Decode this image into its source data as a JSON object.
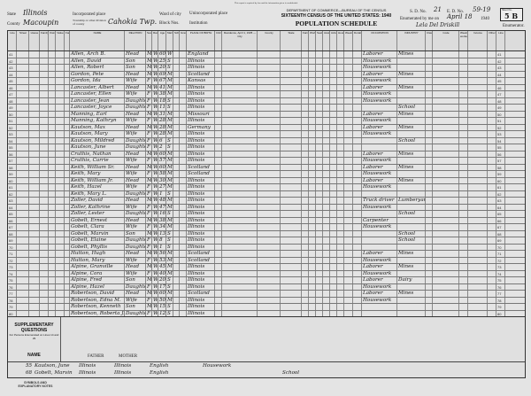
{
  "header": {
    "notice": "This report is required by law and the information given is confidential.",
    "department": "DEPARTMENT OF COMMERCE—BUREAU OF THE CENSUS",
    "census": "SIXTEENTH CENSUS OF THE UNITED STATES: 1940",
    "schedule": "POPULATION SCHEDULE",
    "state_label": "State",
    "state": "Illinois",
    "county_label": "County",
    "county": "Macoupin",
    "township_label": "Township or other division of county",
    "township": "Cahokia Twp.",
    "incorporated_label": "Incorporated place",
    "ward_label": "Ward of city",
    "block_label": "Block Nos.",
    "unincorporated_label": "Unincorporated place",
    "institution_label": "Institution",
    "sd_label": "S. D. No.",
    "sd": "21",
    "ed_label": "E. D. No.",
    "ed": "59-19",
    "sheet_label": "Sheet No.",
    "sheet": "5 B",
    "enumerated_label": "Enumerated by me on",
    "enumerated_date": "April 18",
    "year": "1940",
    "enumerator": "Lela Del Driskill",
    "enumerator_label": "Enumerator."
  },
  "columns": [
    "Line",
    "Street",
    "House",
    "Family",
    "Owned",
    "Value",
    "Farm",
    "NAME",
    "RELATION",
    "Sex",
    "Race",
    "Age",
    "Marital",
    "School",
    "Grade",
    "PLACE OF BIRTH",
    "Citizenship",
    "Residence, April 1, 1935 — City",
    "County",
    "State",
    "Farm",
    "Work",
    "Seeking",
    "Assigned",
    "Activity",
    "Hours",
    "Weeks",
    "Duration",
    "OCCUPATION",
    "INDUSTRY",
    "Class",
    "Code",
    "Weeks worked",
    "Income",
    "Other",
    "Line"
  ],
  "rows": [
    [
      "41",
      "Allen, Arch B.",
      "Head",
      "M",
      "W",
      "60",
      "Wd",
      "England",
      "Laborer",
      "Mines"
    ],
    [
      "42",
      "Allen, David",
      "Son",
      "M",
      "W",
      "25",
      "S",
      "Illinois",
      "Housework",
      ""
    ],
    [
      "43",
      "Allen, Robert",
      "Son",
      "M",
      "W",
      "20",
      "S",
      "Illinois",
      "Housework",
      ""
    ],
    [
      "44",
      "Gordon, Pete",
      "Head",
      "M",
      "W",
      "69",
      "M",
      "Scotland",
      "Laborer",
      "Mines"
    ],
    [
      "45",
      "Gordon, Ida",
      "Wife",
      "F",
      "W",
      "67",
      "M",
      "Kansas",
      "Housework",
      ""
    ],
    [
      "46",
      "Lancaster, Albert",
      "Head",
      "M",
      "W",
      "41",
      "M",
      "Illinois",
      "Laborer",
      "Mines"
    ],
    [
      "47",
      "Lancaster, Ellen",
      "Wife",
      "F",
      "W",
      "38",
      "M",
      "Illinois",
      "Housework",
      ""
    ],
    [
      "48",
      "Lancaster, Jean",
      "Daughter",
      "F",
      "W",
      "18",
      "S",
      "Illinois",
      "Housework",
      ""
    ],
    [
      "49",
      "Lancaster, Joyce",
      "Daughter",
      "F",
      "W",
      "11",
      "S",
      "Illinois",
      "",
      "School"
    ],
    [
      "50",
      "Manning, Earl",
      "Head",
      "M",
      "W",
      "31",
      "M",
      "Missouri",
      "Laborer",
      "Mines"
    ],
    [
      "51",
      "Manning, Kathryn",
      "Wife",
      "F",
      "W",
      "28",
      "M",
      "Illinois",
      "Housework",
      ""
    ],
    [
      "52",
      "Kautson, Max",
      "Head",
      "M",
      "W",
      "28",
      "M",
      "Germany",
      "Laborer",
      "Mines"
    ],
    [
      "53",
      "Kautson, Mary",
      "Wife",
      "F",
      "W",
      "28",
      "M",
      "Illinois",
      "Housework",
      ""
    ],
    [
      "54",
      "Kautson, Mildred",
      "Daughter",
      "F",
      "W",
      "6",
      "S",
      "Illinois",
      "",
      "School"
    ],
    [
      "55",
      "Kautson, June",
      "Daughter",
      "F",
      "W",
      "2",
      "S",
      "Illinois",
      "",
      ""
    ],
    [
      "56",
      "Cruthis, Nathan",
      "Head",
      "M",
      "W",
      "60",
      "M",
      "Illinois",
      "Laborer",
      "Mines"
    ],
    [
      "57",
      "Cruthis, Carrie",
      "Wife",
      "F",
      "W",
      "57",
      "M",
      "Illinois",
      "Housework",
      ""
    ],
    [
      "58",
      "Keith, William Sr.",
      "Head",
      "M",
      "W",
      "60",
      "M",
      "Scotland",
      "Laborer",
      "Mines"
    ],
    [
      "59",
      "Keith, Mary",
      "Wife",
      "F",
      "W",
      "58",
      "M",
      "Scotland",
      "Housework",
      ""
    ],
    [
      "60",
      "Keith, William Jr.",
      "Head",
      "M",
      "W",
      "30",
      "M",
      "Illinois",
      "Laborer",
      "Mines"
    ],
    [
      "61",
      "Keith, Hazel",
      "Wife",
      "F",
      "W",
      "27",
      "M",
      "Illinois",
      "Housework",
      ""
    ],
    [
      "62",
      "Keith, Mary L.",
      "Daughter",
      "F",
      "W",
      "1",
      "S",
      "Illinois",
      "",
      ""
    ],
    [
      "63",
      "Zoller, David",
      "Head",
      "M",
      "W",
      "48",
      "M",
      "Illinois",
      "Truck driver",
      "Lumberyard"
    ],
    [
      "64",
      "Zoller, Kathrine",
      "Wife",
      "F",
      "W",
      "47",
      "M",
      "Illinois",
      "Housework",
      ""
    ],
    [
      "65",
      "Zoller, Lester",
      "Daughter",
      "F",
      "W",
      "16",
      "S",
      "Illinois",
      "",
      "School"
    ],
    [
      "66",
      "Gobelt, Ernest",
      "Head",
      "M",
      "W",
      "38",
      "M",
      "Illinois",
      "Carpenter",
      ""
    ],
    [
      "67",
      "Gobelt, Clara",
      "Wife",
      "F",
      "W",
      "34",
      "M",
      "Illinois",
      "Housework",
      ""
    ],
    [
      "68",
      "Gobelt, Marvin",
      "Son",
      "M",
      "W",
      "13",
      "S",
      "Illinois",
      "",
      "School"
    ],
    [
      "69",
      "Gobelt, Elaine",
      "Daughter",
      "F",
      "W",
      "8",
      "S",
      "Illinois",
      "",
      "School"
    ],
    [
      "70",
      "Gobelt, Phyllis",
      "Daughter",
      "F",
      "W",
      "1",
      "S",
      "Illinois",
      "",
      ""
    ],
    [
      "71",
      "Hutton, Hugh",
      "Head",
      "M",
      "W",
      "56",
      "M",
      "Scotland",
      "Laborer",
      "Mines"
    ],
    [
      "72",
      "Hutton, Mary",
      "Wife",
      "F",
      "W",
      "53",
      "M",
      "Scotland",
      "Housework",
      ""
    ],
    [
      "73",
      "Alpine, Granville",
      "Head",
      "M",
      "W",
      "45",
      "M",
      "Illinois",
      "Laborer",
      "Mines"
    ],
    [
      "74",
      "Alpine, Cora",
      "Wife",
      "F",
      "W",
      "40",
      "M",
      "Illinois",
      "Housework",
      ""
    ],
    [
      "75",
      "Alpine, Fred",
      "Son",
      "M",
      "W",
      "20",
      "S",
      "Illinois",
      "Laborer",
      "Dairy"
    ],
    [
      "76",
      "Alpine, Hazel",
      "Daughter",
      "F",
      "W",
      "17",
      "S",
      "Illinois",
      "Housework",
      ""
    ],
    [
      "77",
      "Robertson, David",
      "Head",
      "M",
      "W",
      "60",
      "M",
      "Scotland",
      "Laborer",
      "Mines"
    ],
    [
      "78",
      "Robertson, Edna M.",
      "Wife",
      "F",
      "W",
      "50",
      "M",
      "Illinois",
      "Housework",
      ""
    ],
    [
      "79",
      "Robertson, Kenneth",
      "Son",
      "M",
      "W",
      "15",
      "S",
      "Illinois",
      "",
      ""
    ],
    [
      "80",
      "Robertson, Roberta J.",
      "Daughter",
      "F",
      "W",
      "12",
      "S",
      "Illinois",
      "",
      ""
    ]
  ],
  "supplementary": {
    "title": "SUPPLEMENTARY QUESTIONS",
    "subtitle": "For Persons Enumerated on Lines 14 and 29",
    "name_label": "NAME",
    "father_label": "FATHER",
    "mother_label": "MOTHER",
    "rows": [
      {
        "line": "55",
        "name": "Kautson, June",
        "father": "Illinois",
        "mother": "Illinois",
        "language": "English",
        "occupation": "Housework",
        "industry": ""
      },
      {
        "line": "68",
        "name": "Gobelt, Marvin",
        "father": "Illinois",
        "mother": "Illinois",
        "language": "English",
        "occupation": "",
        "industry": "School"
      }
    ],
    "notes_title": "SYMBOLS AND EXPLANATORY NOTES"
  }
}
